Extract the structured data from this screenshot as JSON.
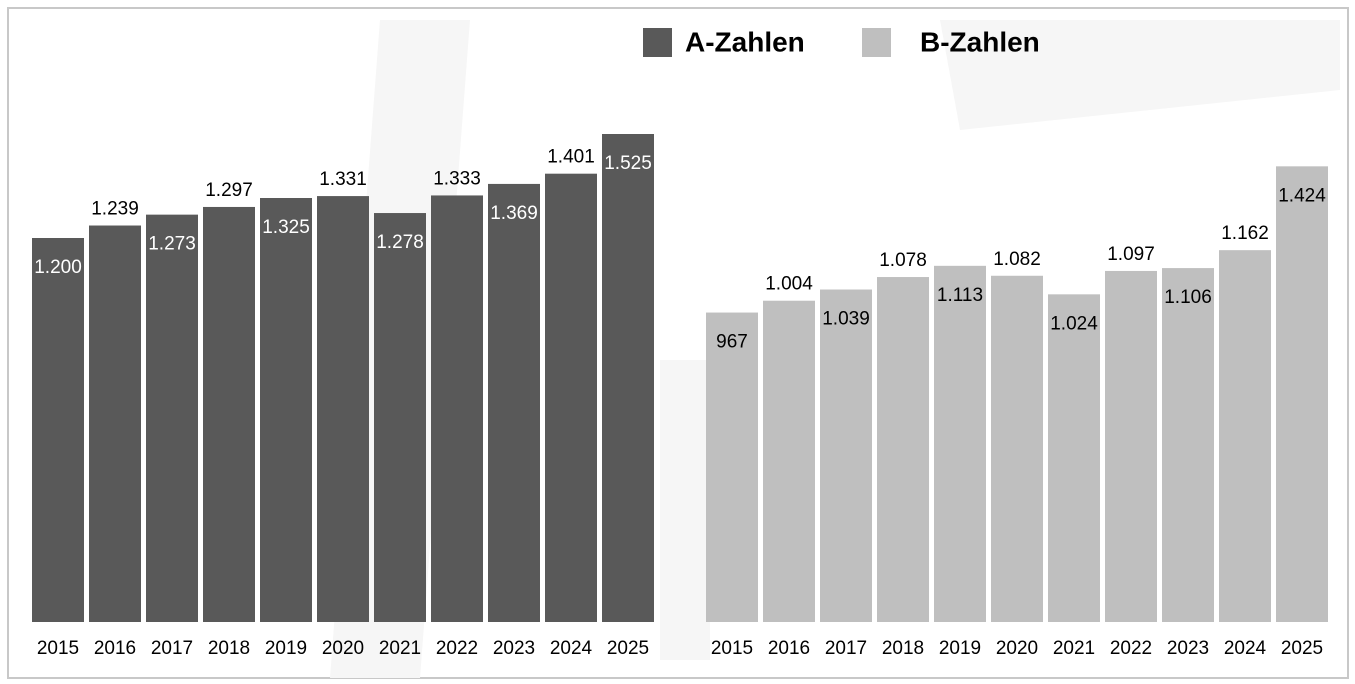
{
  "chart_data": {
    "type": "bar",
    "categories": [
      "2015",
      "2016",
      "2017",
      "2018",
      "2019",
      "2020",
      "2021",
      "2022",
      "2023",
      "2024",
      "2025"
    ],
    "series": [
      {
        "name": "A-Zahlen",
        "color": "#595959",
        "values": [
          1200,
          1239,
          1273,
          1297,
          1325,
          1331,
          1278,
          1333,
          1369,
          1401,
          1525
        ],
        "value_labels": [
          "1.200",
          "1.239",
          "1.273",
          "1.297",
          "1.325",
          "1.331",
          "1.278",
          "1.333",
          "1.369",
          "1.401",
          "1.525"
        ]
      },
      {
        "name": "B-Zahlen",
        "color": "#bfbfbf",
        "values": [
          967,
          1004,
          1039,
          1078,
          1113,
          1082,
          1024,
          1097,
          1106,
          1162,
          1424
        ],
        "value_labels": [
          "967",
          "1.004",
          "1.039",
          "1.078",
          "1.113",
          "1.082",
          "1.024",
          "1.097",
          "1.106",
          "1.162",
          "1.424"
        ]
      }
    ],
    "ylim": [
      0,
      1600
    ]
  }
}
